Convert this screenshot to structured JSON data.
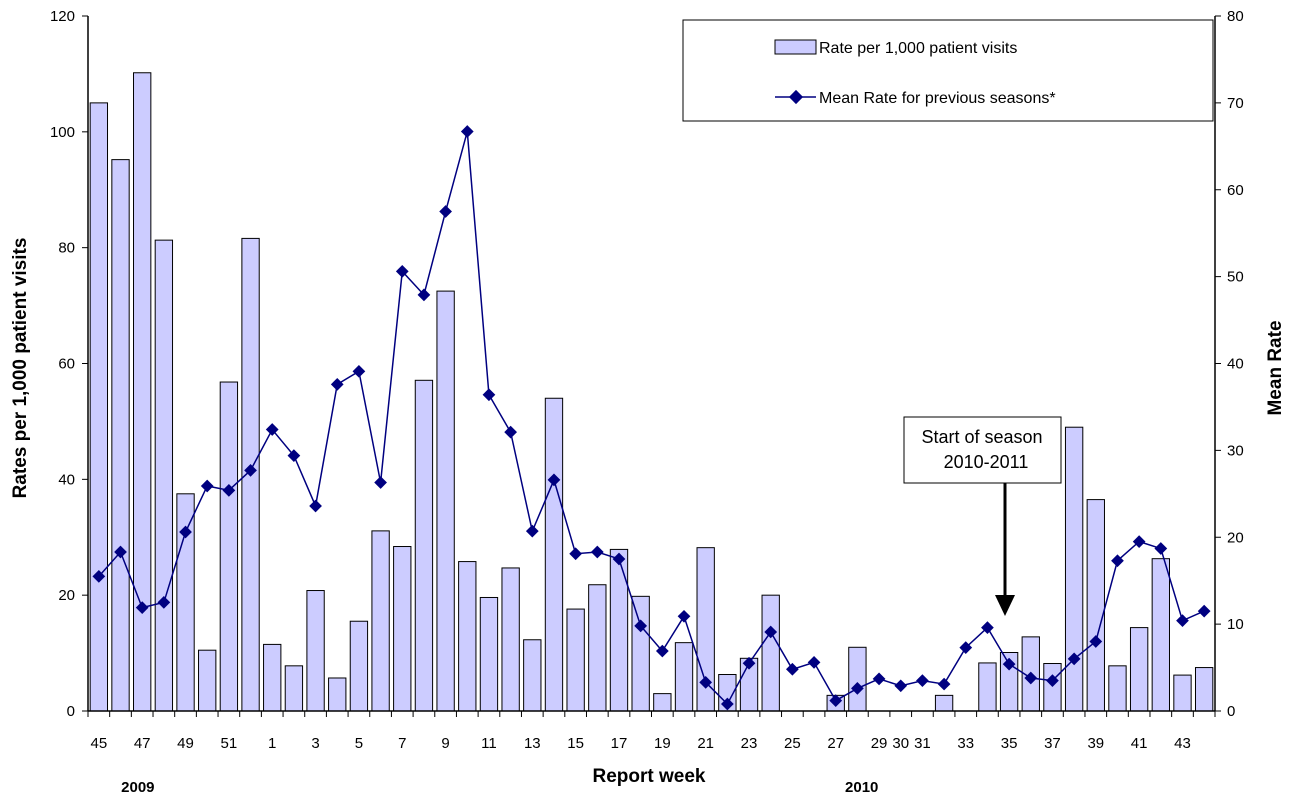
{
  "chart_data": {
    "type": "bar",
    "xlabel": "Report week",
    "ylabel": "Rates per 1,000 patient visits",
    "y2label": "Mean Rate",
    "ylim": [
      0,
      120
    ],
    "y2lim": [
      0,
      80
    ],
    "yticks": [
      "0",
      "20",
      "40",
      "60",
      "80",
      "100",
      "120"
    ],
    "y2ticks": [
      "0",
      "10",
      "20",
      "30",
      "40",
      "50",
      "60",
      "70",
      "80"
    ],
    "categories": [
      "45",
      "46",
      "47",
      "48",
      "49",
      "50",
      "51",
      "52",
      "1",
      "2",
      "3",
      "4",
      "5",
      "6",
      "7",
      "8",
      "9",
      "10",
      "11",
      "12",
      "13",
      "14",
      "15",
      "16",
      "17",
      "18",
      "19",
      "20",
      "21",
      "22",
      "23",
      "24",
      "25",
      "26",
      "27",
      "28",
      "29",
      "30",
      "31",
      "32",
      "33",
      "34",
      "35",
      "36",
      "37",
      "38",
      "39",
      "40",
      "41",
      "42",
      "43",
      "44"
    ],
    "x_tick_labels": [
      "45",
      "",
      "47",
      "",
      "49",
      "",
      "51",
      "",
      "1",
      "",
      "3",
      "",
      "5",
      "",
      "7",
      "",
      "9",
      "",
      "11",
      "",
      "13",
      "",
      "15",
      "",
      "17",
      "",
      "19",
      "",
      "21",
      "",
      "23",
      "",
      "25",
      "",
      "27",
      "",
      "29",
      "30",
      "31",
      "",
      "33",
      "",
      "35",
      "",
      "37",
      "",
      "39",
      "",
      "41",
      "",
      "43",
      ""
    ],
    "year_labels": [
      {
        "text": "2009",
        "at_index": 1.8
      },
      {
        "text": "2010",
        "at_index": 35.2
      }
    ],
    "series": [
      {
        "name": "Rate per 1,000  patient visits",
        "type": "bar",
        "axis": "left",
        "color": "#ccccff",
        "values": [
          105,
          95.2,
          110.2,
          81.3,
          37.5,
          10.5,
          56.8,
          81.6,
          11.5,
          7.8,
          20.8,
          5.7,
          15.5,
          31.1,
          28.4,
          57.1,
          72.5,
          25.8,
          19.6,
          24.7,
          12.3,
          54,
          17.6,
          21.8,
          27.9,
          19.8,
          3,
          11.8,
          28.2,
          6.3,
          9.1,
          20,
          0,
          0,
          2.7,
          11,
          0,
          0,
          0,
          2.7,
          0,
          8.3,
          10.1,
          12.8,
          8.2,
          49,
          36.5,
          7.8,
          14.4,
          26.3,
          6.2,
          7.5
        ]
      },
      {
        "name": "Mean Rate  for previous seasons*",
        "type": "line",
        "axis": "right",
        "color": "#000080",
        "values": [
          15.5,
          18.3,
          11.9,
          12.5,
          20.6,
          25.9,
          25.4,
          27.7,
          32.4,
          29.4,
          23.6,
          37.6,
          39.1,
          26.3,
          50.6,
          47.9,
          57.5,
          66.7,
          36.4,
          32.1,
          20.7,
          26.6,
          18.1,
          18.3,
          17.5,
          9.8,
          6.9,
          10.9,
          3.3,
          0.8,
          5.5,
          9.1,
          4.8,
          5.6,
          1.2,
          2.6,
          3.7,
          2.9,
          3.5,
          3.1,
          7.3,
          9.6,
          5.4,
          3.8,
          3.5,
          6,
          8,
          17.3,
          19.5,
          18.7,
          10.4,
          11.5
        ]
      }
    ],
    "legend": {
      "position": "top-right"
    },
    "annotation": {
      "lines": [
        "Start of season",
        "2010-2011"
      ],
      "arrow_at_category": "35"
    },
    "grid": false
  }
}
